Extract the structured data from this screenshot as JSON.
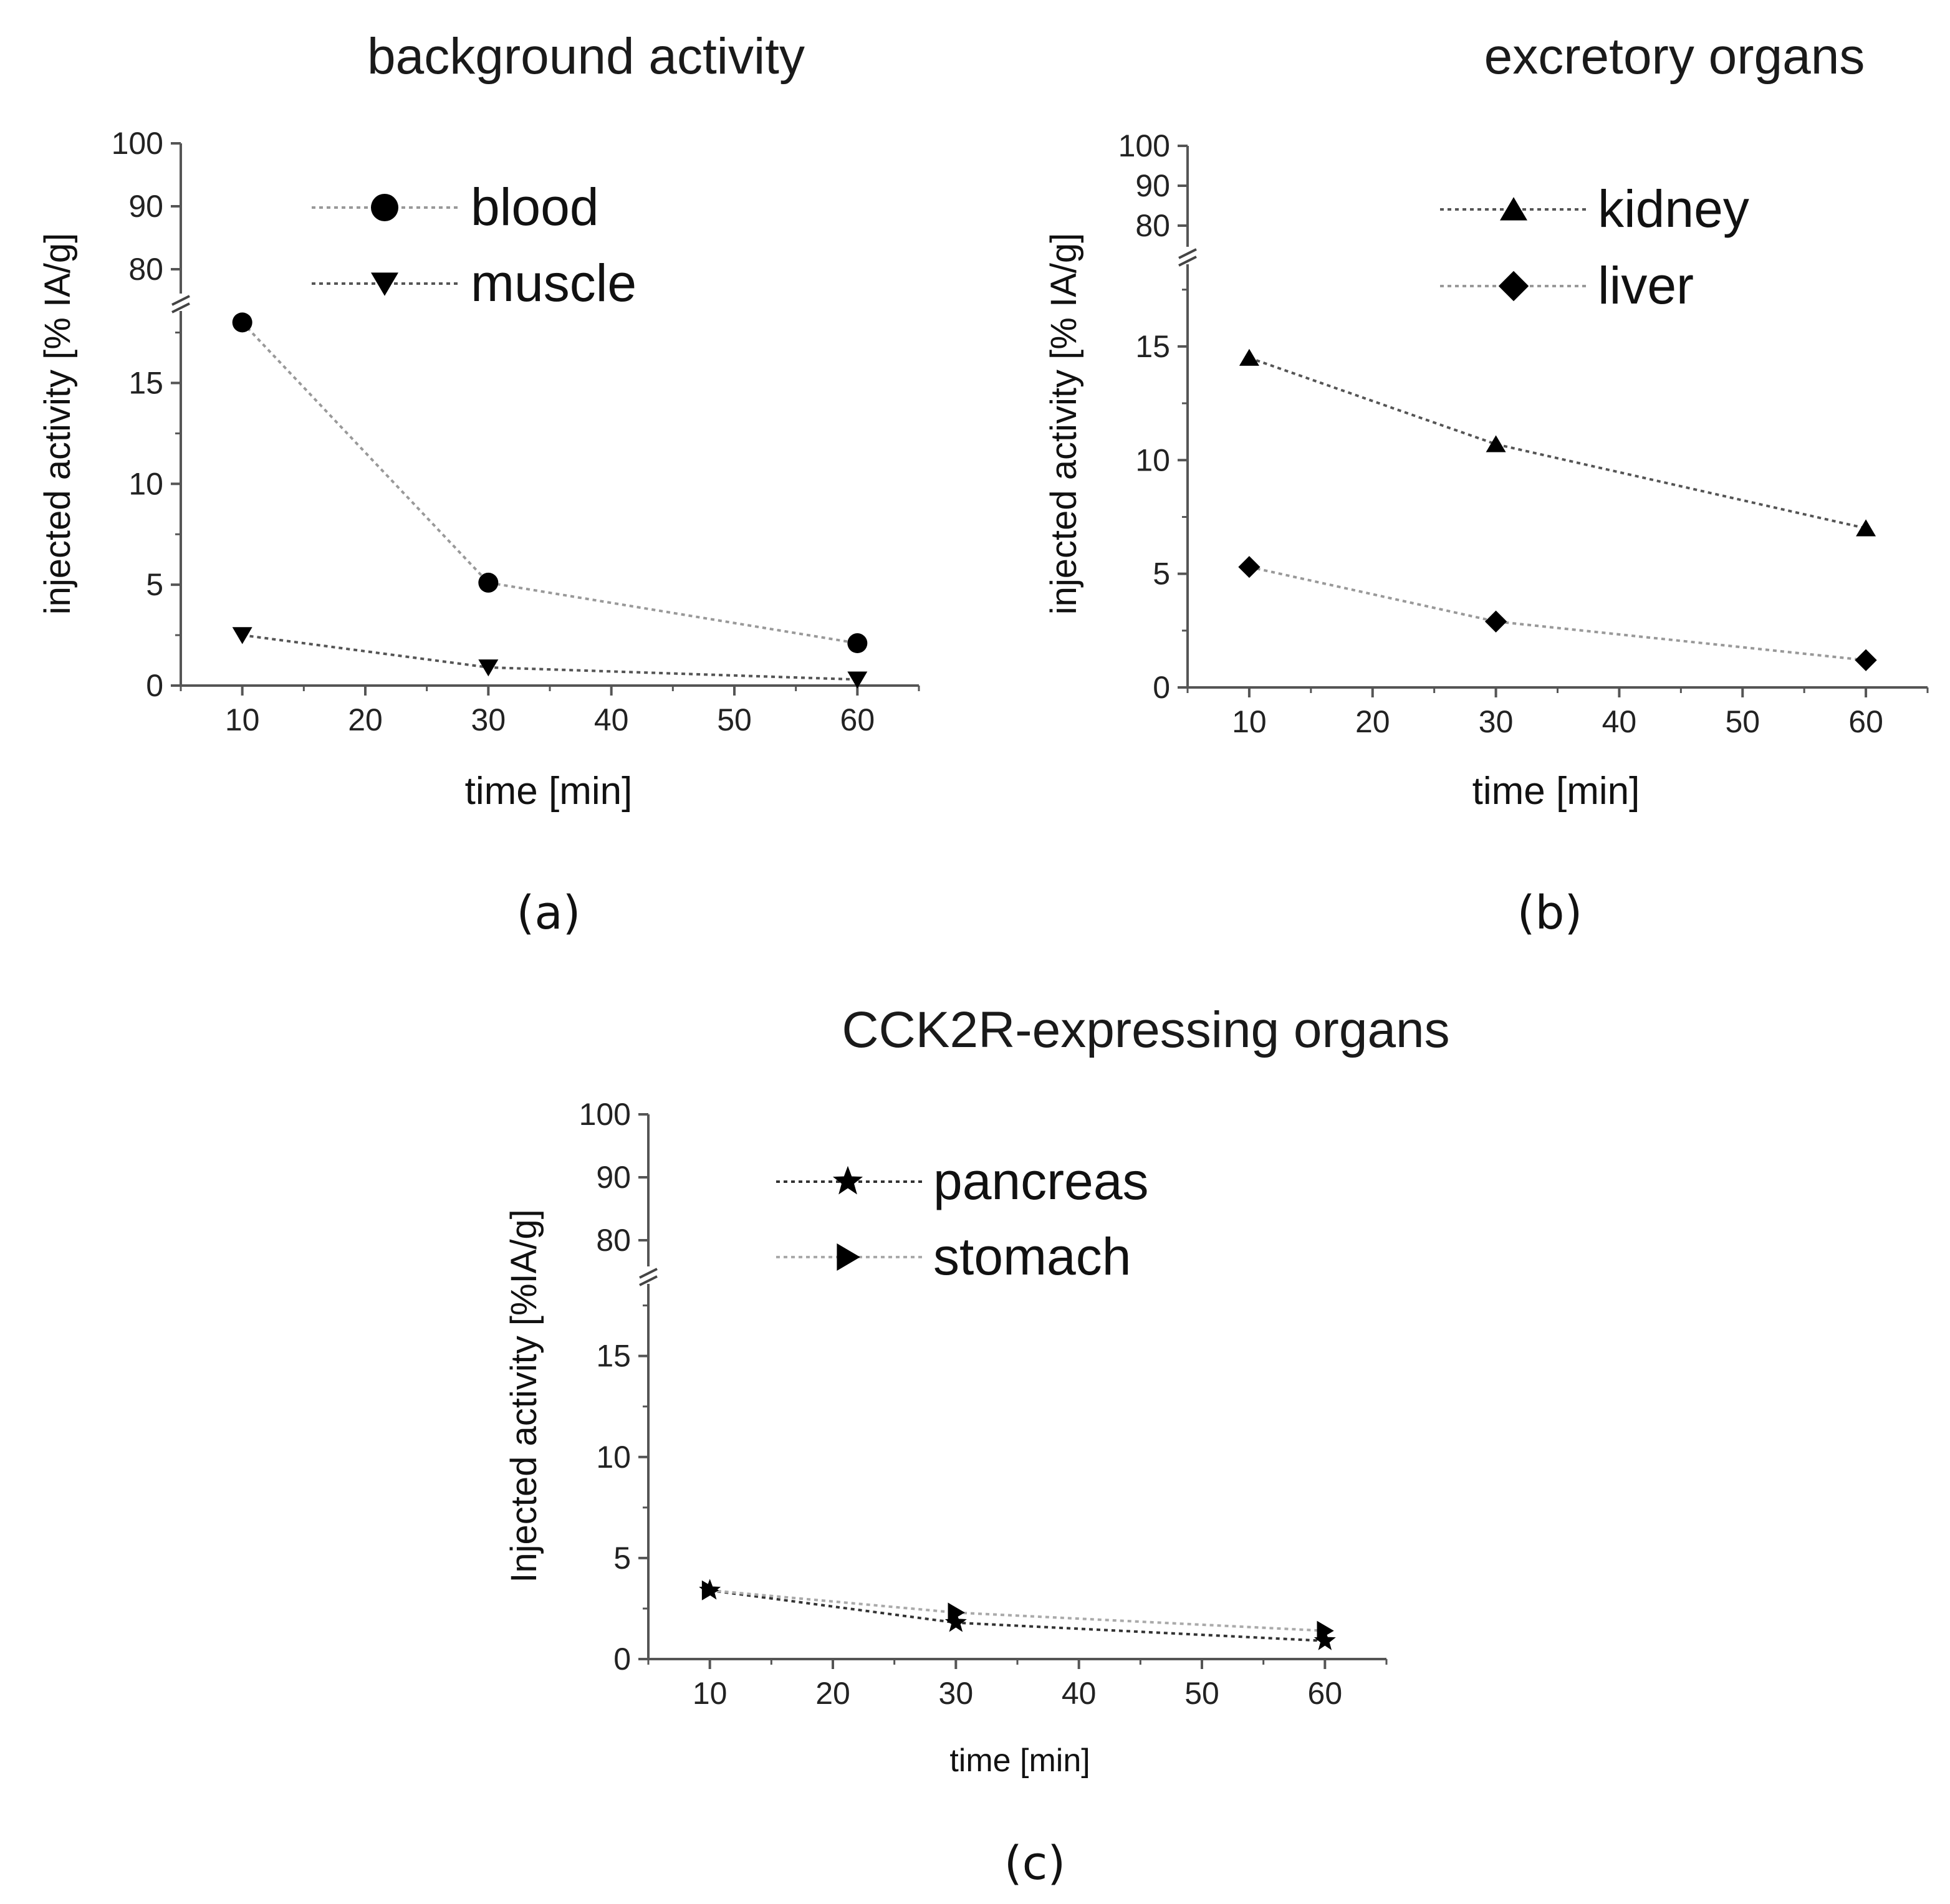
{
  "chart_data": [
    {
      "type": "line",
      "title": "background activity",
      "panel_label": "(a)",
      "xlabel": "time [min]",
      "ylabel": "injected activity [% IA/g]",
      "xlim": [
        5,
        65
      ],
      "x_ticks": [
        "10",
        "20",
        "30",
        "40",
        "50",
        "60"
      ],
      "y_ticks_lower": [
        "0",
        "5",
        "10",
        "15"
      ],
      "y_ticks_upper": [
        "80",
        "90",
        "100"
      ],
      "axis_break": true,
      "series": [
        {
          "name": "blood",
          "marker": "circle",
          "x": [
            10,
            30,
            60
          ],
          "y": [
            18.0,
            5.1,
            2.1
          ]
        },
        {
          "name": "muscle",
          "marker": "triangle-down",
          "x": [
            10,
            30,
            60
          ],
          "y": [
            2.5,
            0.9,
            0.3
          ]
        }
      ]
    },
    {
      "type": "line",
      "title": "excretory organs",
      "panel_label": "(b)",
      "xlabel": "time [min]",
      "ylabel": "injected activity [% IA/g]",
      "xlim": [
        5,
        65
      ],
      "x_ticks": [
        "10",
        "20",
        "30",
        "40",
        "50",
        "60"
      ],
      "y_ticks_lower": [
        "0",
        "5",
        "10",
        "15"
      ],
      "y_ticks_upper": [
        "80",
        "90",
        "100"
      ],
      "axis_break": true,
      "series": [
        {
          "name": "kidney",
          "marker": "triangle-up",
          "x": [
            10,
            30,
            60
          ],
          "y": [
            14.5,
            10.7,
            7.0
          ]
        },
        {
          "name": "liver",
          "marker": "diamond",
          "x": [
            10,
            30,
            60
          ],
          "y": [
            5.3,
            2.9,
            1.2
          ]
        }
      ]
    },
    {
      "type": "line",
      "title": "CCK2R-expressing organs",
      "panel_label": "(c)",
      "xlabel": "time [min]",
      "ylabel": "Injected activity [%IA/g]",
      "xlim": [
        5,
        65
      ],
      "x_ticks": [
        "10",
        "20",
        "30",
        "40",
        "50",
        "60"
      ],
      "y_ticks_lower": [
        "0",
        "5",
        "10",
        "15"
      ],
      "y_ticks_upper": [
        "80",
        "90",
        "100"
      ],
      "axis_break": true,
      "series": [
        {
          "name": "pancreas",
          "marker": "star",
          "x": [
            10,
            30,
            60
          ],
          "y": [
            3.4,
            1.8,
            0.9
          ]
        },
        {
          "name": "stomach",
          "marker": "triangle-right",
          "x": [
            10,
            30,
            60
          ],
          "y": [
            3.4,
            2.3,
            1.4
          ]
        }
      ]
    }
  ]
}
